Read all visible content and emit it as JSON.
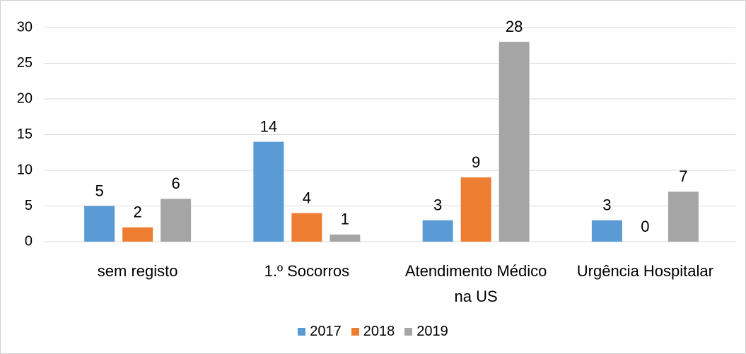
{
  "chart_data": {
    "type": "bar",
    "categories": [
      "sem registo",
      "1.º Socorros",
      "Atendimento Médico na US",
      "Urgência Hospitalar"
    ],
    "series": [
      {
        "name": "2017",
        "color": "#5b9bd5",
        "values": [
          5,
          14,
          3,
          3
        ]
      },
      {
        "name": "2018",
        "color": "#ed7d31",
        "values": [
          2,
          4,
          9,
          0
        ]
      },
      {
        "name": "2019",
        "color": "#a5a5a5",
        "values": [
          6,
          1,
          28,
          7
        ]
      }
    ],
    "ylim": [
      0,
      30
    ],
    "yticks": [
      0,
      5,
      10,
      15,
      20,
      25,
      30
    ],
    "grid": true,
    "legend": "bottom"
  }
}
